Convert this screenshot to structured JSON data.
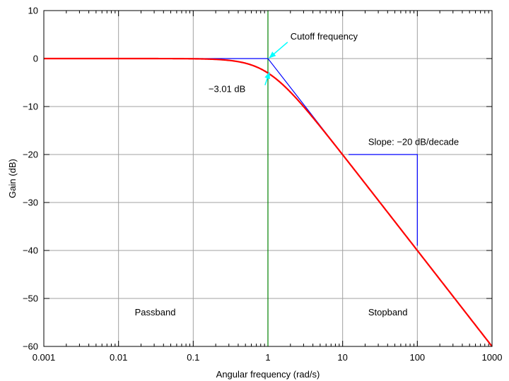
{
  "chart_data": {
    "type": "line",
    "xscale": "log",
    "xlim": [
      0.001,
      1000
    ],
    "ylim": [
      -60,
      10
    ],
    "grid": true,
    "xlabel": "Angular frequency (rad/s)",
    "ylabel": "Gain (dB)",
    "x_ticks": [
      0.001,
      0.01,
      0.1,
      1,
      10,
      100,
      1000
    ],
    "x_tick_labels": [
      "0.001",
      "0.01",
      "0.1",
      "1",
      "10",
      "100",
      "1000"
    ],
    "y_ticks": [
      10,
      0,
      -10,
      -20,
      -30,
      -40,
      -50,
      -60
    ],
    "y_tick_labels": [
      "10",
      "0",
      "−10",
      "−20",
      "−30",
      "−40",
      "−50",
      "−60"
    ],
    "series": [
      {
        "color": "#ff0000",
        "x": [
          0.001,
          0.01,
          0.1,
          0.2,
          0.3,
          0.5,
          0.7,
          1,
          1.5,
          2,
          3,
          5,
          7,
          10,
          20,
          50,
          100,
          200,
          500,
          1000
        ],
        "y": [
          0,
          0,
          -0.04,
          -0.17,
          -0.37,
          -0.97,
          -1.73,
          -3.01,
          -5.12,
          -6.99,
          -10.0,
          -14.15,
          -17.0,
          -20.04,
          -26.03,
          -33.98,
          -40.0,
          -46.02,
          -53.98,
          -60.0
        ]
      },
      {
        "color": "#0000ff",
        "x": [
          0.1,
          1,
          10
        ],
        "y": [
          0,
          0,
          -20
        ]
      }
    ],
    "vline": {
      "x": 1,
      "color": "#008000"
    },
    "slope_marker": {
      "x": [
        12,
        100,
        100
      ],
      "y": [
        -20,
        -20,
        -39
      ],
      "color": "#0000ff"
    },
    "annotations": [
      {
        "text": "Cutoff frequency",
        "x": 2.0,
        "y": 4,
        "arrow_to": [
          1,
          0
        ],
        "arrow_color": "#00ffff"
      },
      {
        "text": "−3.01 dB",
        "x": 0.16,
        "y": -7,
        "arrow_to": [
          1,
          -3.01
        ],
        "arrow_color": "#00ffff"
      },
      {
        "text": "Slope: −20 dB/decade",
        "x": 22,
        "y": -18,
        "arrow_to": null
      },
      {
        "text": "Passband",
        "x": 0.0165,
        "y": -53.5,
        "arrow_to": null
      },
      {
        "text": "Stopband",
        "x": 22,
        "y": -53.5,
        "arrow_to": null
      }
    ]
  }
}
